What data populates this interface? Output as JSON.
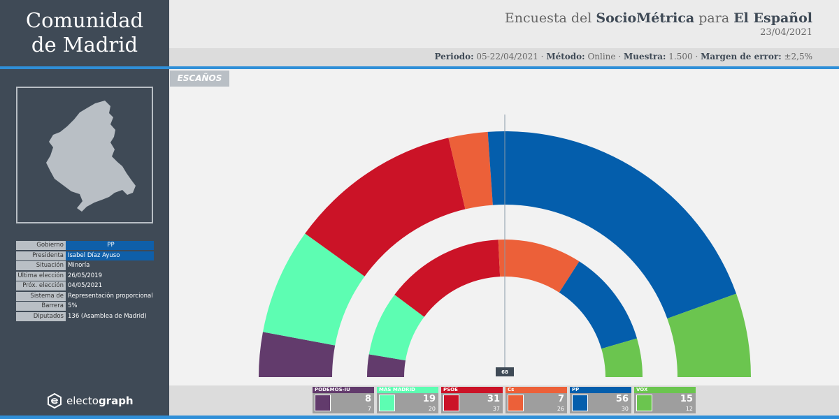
{
  "region": {
    "line1": "Comunidad",
    "line2": "de Madrid"
  },
  "survey": {
    "prefix": "Encuesta del ",
    "pollster": "SocioMétrica",
    "joiner": " para ",
    "media": "El Español",
    "date": "23/04/2021"
  },
  "meta": {
    "periodo_label": "Periodo:",
    "periodo": "05-22/04/2021",
    "metodo_label": "Método:",
    "metodo": "Online",
    "muestra_label": "Muestra:",
    "muestra": "1.500",
    "margen_label": "Margen de error:",
    "margen": "±2,5%",
    "sep": " · "
  },
  "info": [
    {
      "label": "Gobierno",
      "value": "PP"
    },
    {
      "label": "Presidenta",
      "value": "Isabel Díaz Ayuso"
    },
    {
      "label": "Situación",
      "value": "Minoría"
    },
    {
      "label": "Última elección",
      "value": "26/05/2019"
    },
    {
      "label": "Próx. elección",
      "value": "04/05/2021"
    },
    {
      "label": "Sistema de voto",
      "value": "Representación proporcional"
    },
    {
      "label": "Barrera",
      "value": "5%"
    },
    {
      "label": "Diputados",
      "value": "136 (Asamblea de Madrid)"
    }
  ],
  "brand": {
    "light": "electo",
    "bold": "graph"
  },
  "section_tab": "ESCAÑOS",
  "chart_data": {
    "type": "parliament-donut",
    "total_seats": 136,
    "majority": 68,
    "majority_label": "68",
    "series": [
      {
        "name": "PODEMOS-IU",
        "color": "#623b6c",
        "seats": 8,
        "previous": 7
      },
      {
        "name": "MÁS MADRID",
        "color": "#5dfdb2",
        "seats": 19,
        "previous": 20
      },
      {
        "name": "PSOE",
        "color": "#cb1327",
        "seats": 31,
        "previous": 37
      },
      {
        "name": "Cs",
        "color": "#ec6039",
        "seats": 7,
        "previous": 26
      },
      {
        "name": "PP",
        "color": "#045eac",
        "seats": 56,
        "previous": 30
      },
      {
        "name": "VOX",
        "color": "#6bc54f",
        "seats": 15,
        "previous": 12
      }
    ],
    "rings": {
      "outer": "seats",
      "inner": "previous"
    }
  },
  "legend_icons": [
    "heart-icon",
    "mas-madrid-icon",
    "psoe-rose-icon",
    "cs-icon",
    "pp-icon",
    "vox-icon"
  ]
}
